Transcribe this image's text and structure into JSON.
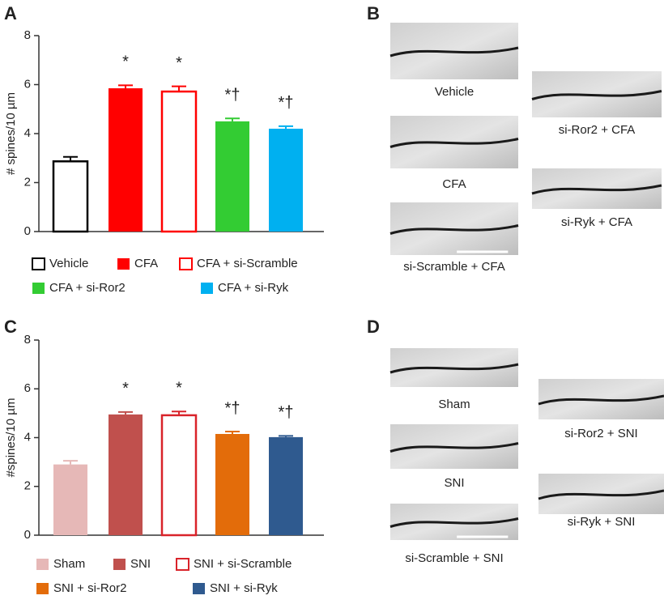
{
  "panel_labels": [
    "A",
    "B",
    "C",
    "D"
  ],
  "chart_data": [
    {
      "type": "bar",
      "ylabel": "# spines/10 µm",
      "ylim": [
        0,
        8
      ],
      "yticks": [
        0,
        2,
        4,
        6,
        8
      ],
      "series": [
        {
          "name": "Vehicle",
          "color": "#000000",
          "fill": "hollow",
          "values": [
            2.9
          ],
          "errors": [
            0.15
          ],
          "annotation": null
        },
        {
          "name": "CFA",
          "color": "#ff0000",
          "fill": "solid",
          "values": [
            5.85
          ],
          "errors": [
            0.12
          ],
          "annotation": "*"
        },
        {
          "name": "CFA + si-Scramble",
          "color": "#ff0000",
          "fill": "hollow",
          "values": [
            5.75
          ],
          "errors": [
            0.18
          ],
          "annotation": "*"
        },
        {
          "name": "CFA + si-Ror2",
          "color": "#33cc33",
          "fill": "solid",
          "values": [
            4.5
          ],
          "errors": [
            0.12
          ],
          "annotation": "*†"
        },
        {
          "name": "CFA + si-Ryk",
          "color": "#00b0f0",
          "fill": "solid",
          "values": [
            4.2
          ],
          "errors": [
            0.1
          ],
          "annotation": "*†"
        }
      ]
    },
    {
      "type": "bar",
      "ylabel": "#spines/10 µm",
      "ylim": [
        0,
        8
      ],
      "yticks": [
        0,
        2,
        4,
        6,
        8
      ],
      "series": [
        {
          "name": "Sham",
          "color": "#e6b8b7",
          "fill": "solid",
          "values": [
            2.9
          ],
          "errors": [
            0.15
          ],
          "annotation": null
        },
        {
          "name": "SNI",
          "color": "#c0504d",
          "fill": "solid",
          "values": [
            4.95
          ],
          "errors": [
            0.1
          ],
          "annotation": "*"
        },
        {
          "name": "SNI + si-Scramble",
          "color": "#d9232a",
          "fill": "hollow",
          "values": [
            4.95
          ],
          "errors": [
            0.12
          ],
          "annotation": "*"
        },
        {
          "name": "SNI + si-Ror2",
          "color": "#e36c0a",
          "fill": "solid",
          "values": [
            4.15
          ],
          "errors": [
            0.1
          ],
          "annotation": "*†"
        },
        {
          "name": "SNI + si-Ryk",
          "color": "#2f5a8f",
          "fill": "solid",
          "values": [
            4.02
          ],
          "errors": [
            0.05
          ],
          "annotation": "*†"
        }
      ]
    }
  ],
  "image_panels": [
    {
      "captions": [
        "Vehicle",
        "CFA",
        "si-Scramble + CFA",
        "si-Ror2 + CFA",
        "si-Ryk + CFA"
      ]
    },
    {
      "captions": [
        "Sham",
        "SNI",
        "si-Scramble + SNI",
        "si-Ror2 + SNI",
        "si-Ryk + SNI"
      ]
    }
  ]
}
